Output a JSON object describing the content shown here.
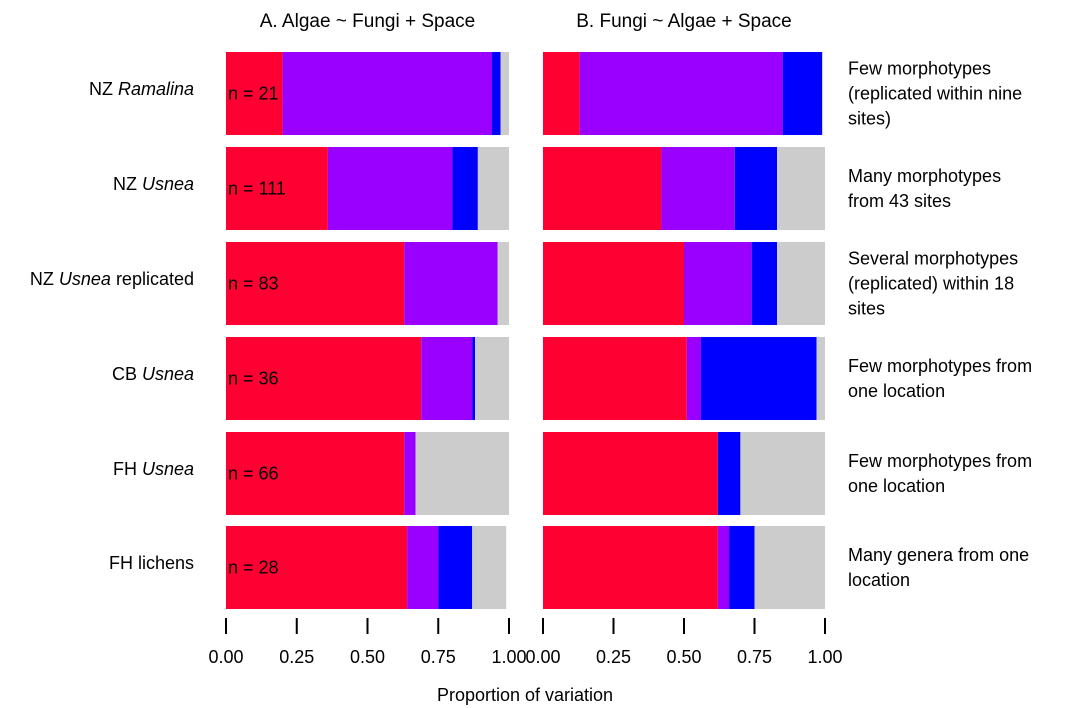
{
  "chart_data": {
    "type": "bar",
    "orientation": "horizontal",
    "stacked": true,
    "xlabel": "Proportion of variation",
    "xlim": [
      0,
      1
    ],
    "ticks": [
      "0.00",
      "0.25",
      "0.50",
      "0.75",
      "1.00"
    ],
    "component_colors": [
      "#ff0033",
      "#9900ff",
      "#0000ff",
      "#cccccc"
    ],
    "rows": [
      {
        "prefix": "NZ ",
        "italic": "Ramalina",
        "suffix": "",
        "n": "n = 21",
        "description": [
          "Few morphotypes",
          "(replicated within nine",
          "sites)"
        ]
      },
      {
        "prefix": "NZ ",
        "italic": "Usnea",
        "suffix": "",
        "n": "n = 111",
        "description": [
          "Many morphotypes",
          "from 43 sites"
        ]
      },
      {
        "prefix": "NZ ",
        "italic": "Usnea",
        "suffix": " replicated",
        "n": "n = 83",
        "description": [
          "Several morphotypes",
          "(replicated) within 18",
          "sites"
        ]
      },
      {
        "prefix": "CB ",
        "italic": "Usnea",
        "suffix": "",
        "n": "n = 36",
        "description": [
          "Few morphotypes  from",
          "one location"
        ]
      },
      {
        "prefix": "FH ",
        "italic": "Usnea",
        "suffix": "",
        "n": "n = 66",
        "description": [
          "Few morphotypes  from",
          "one location"
        ]
      },
      {
        "prefix": "FH lichens",
        "italic": "",
        "suffix": "",
        "n": "n = 28",
        "description": [
          "Many genera from one",
          "location"
        ]
      }
    ],
    "panels": [
      {
        "title": "A. Algae ~ Fungi + Space",
        "values": [
          [
            0.2,
            0.74,
            0.03,
            0.03
          ],
          [
            0.36,
            0.44,
            0.09,
            0.11
          ],
          [
            0.63,
            0.33,
            0.0,
            0.04
          ],
          [
            0.69,
            0.18,
            0.01,
            0.12
          ],
          [
            0.63,
            0.04,
            0.0,
            0.33
          ],
          [
            0.64,
            0.11,
            0.12,
            0.12
          ]
        ]
      },
      {
        "title": "B. Fungi ~ Algae + Space",
        "values": [
          [
            0.13,
            0.72,
            0.14,
            0.0
          ],
          [
            0.42,
            0.26,
            0.15,
            0.17
          ],
          [
            0.5,
            0.24,
            0.09,
            0.17
          ],
          [
            0.51,
            0.05,
            0.41,
            0.03
          ],
          [
            0.62,
            0.0,
            0.08,
            0.3
          ],
          [
            0.62,
            0.04,
            0.09,
            0.25
          ]
        ]
      }
    ]
  }
}
